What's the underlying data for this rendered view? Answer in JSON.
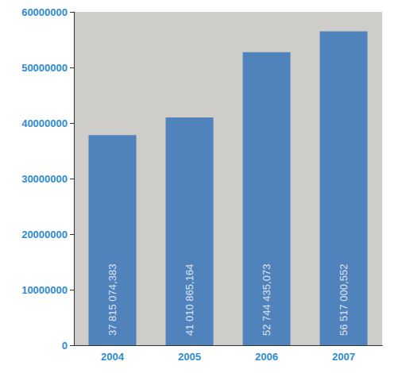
{
  "chart_data": {
    "type": "bar",
    "categories": [
      "2004",
      "2005",
      "2006",
      "2007"
    ],
    "values": [
      37815074.383,
      41010865.164,
      52744435.073,
      56517000.552
    ],
    "value_labels": [
      "37 815 074,383",
      "41 010 865,164",
      "52 744 435,073",
      "56 517 000,552"
    ],
    "data_labels": true,
    "color": "#2f6fb8",
    "ylim": [
      0,
      60000000
    ],
    "yticks": [
      0,
      10000000,
      20000000,
      30000000,
      40000000,
      50000000,
      60000000
    ],
    "grid": false
  }
}
